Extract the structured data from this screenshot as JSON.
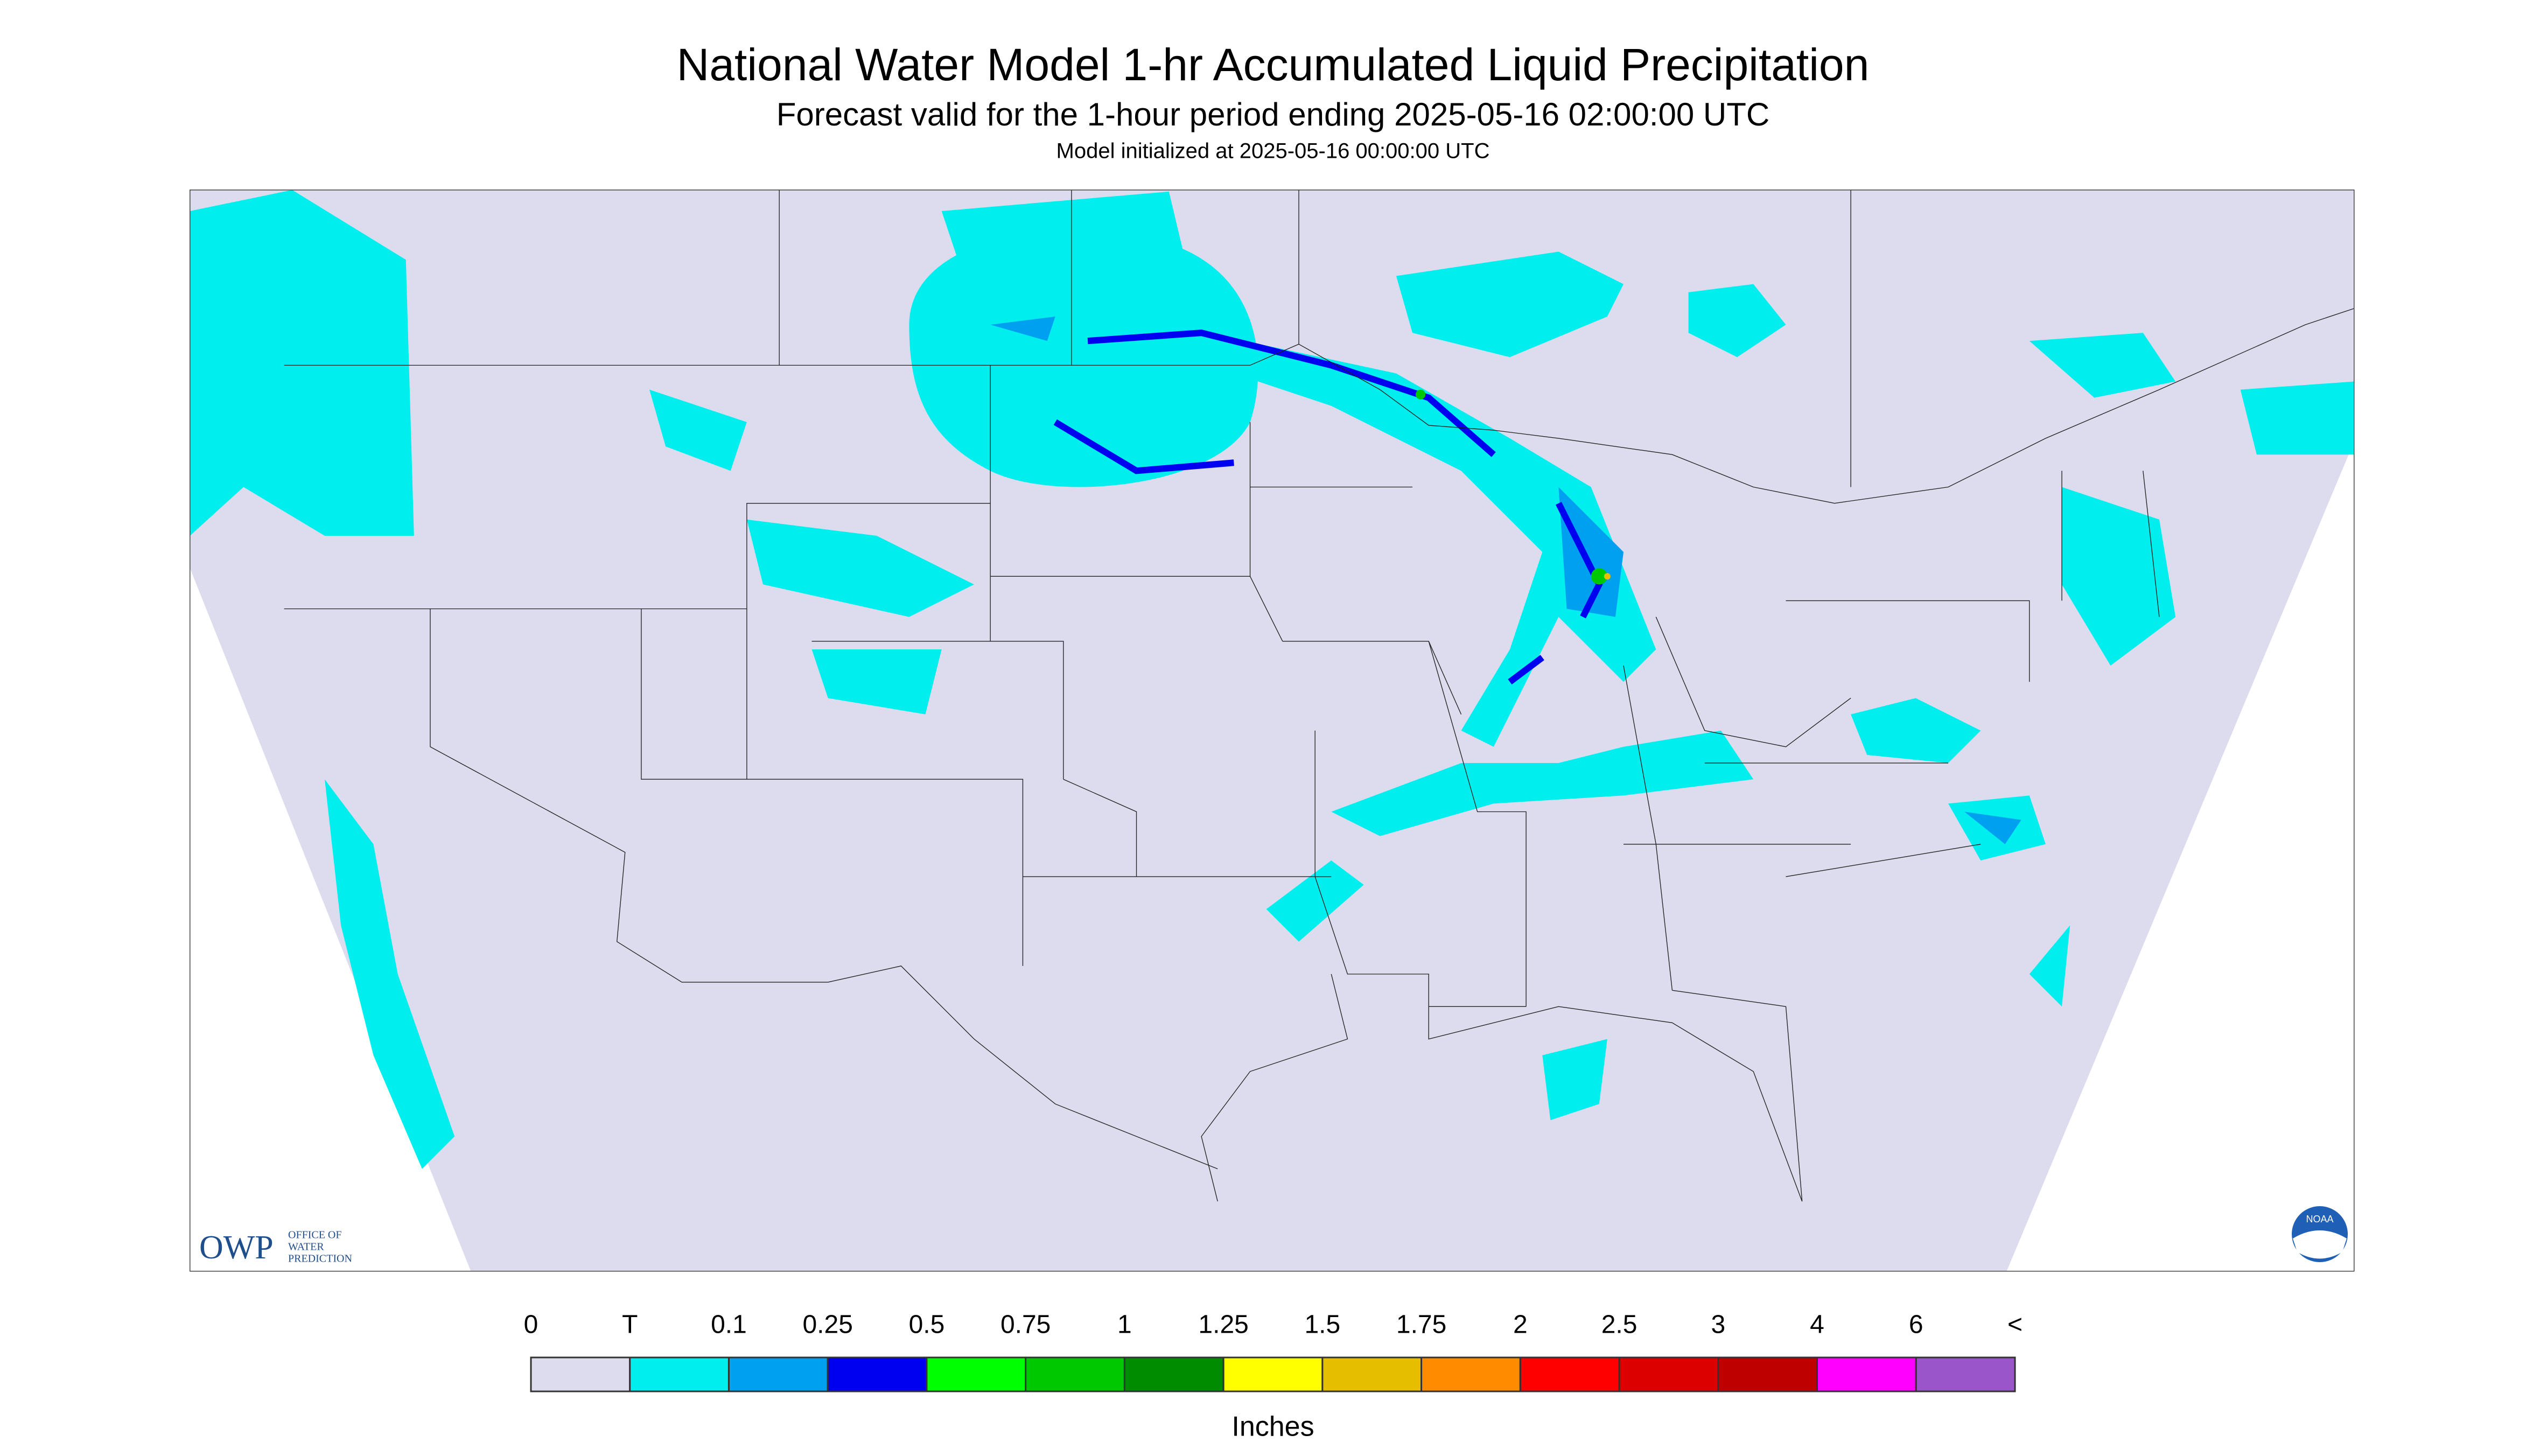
{
  "header": {
    "title": "National Water Model 1-hr Accumulated Liquid Precipitation",
    "subtitle": "Forecast valid for the 1-hour period ending 2025-05-16 02:00:00 UTC",
    "initialized": "Model initialized at 2025-05-16 00:00:00 UTC"
  },
  "legend": {
    "labels": [
      "0",
      "T",
      "0.1",
      "0.25",
      "0.5",
      "0.75",
      "1",
      "1.25",
      "1.5",
      "1.75",
      "2",
      "2.5",
      "3",
      "4",
      "6",
      "<"
    ],
    "colors": [
      "#dcdcee",
      "#00eeee",
      "#00a0f0",
      "#0000f0",
      "#00ff00",
      "#00c800",
      "#008c00",
      "#ffff00",
      "#e6be00",
      "#ff8c00",
      "#ff0000",
      "#dc0000",
      "#be0000",
      "#ff00ff",
      "#9955c9"
    ],
    "unit": "Inches"
  },
  "logos": {
    "owp": "OWP",
    "owp_name": [
      "OFFICE OF",
      "WATER",
      "PREDICTION"
    ],
    "noaa": "NOAA"
  }
}
